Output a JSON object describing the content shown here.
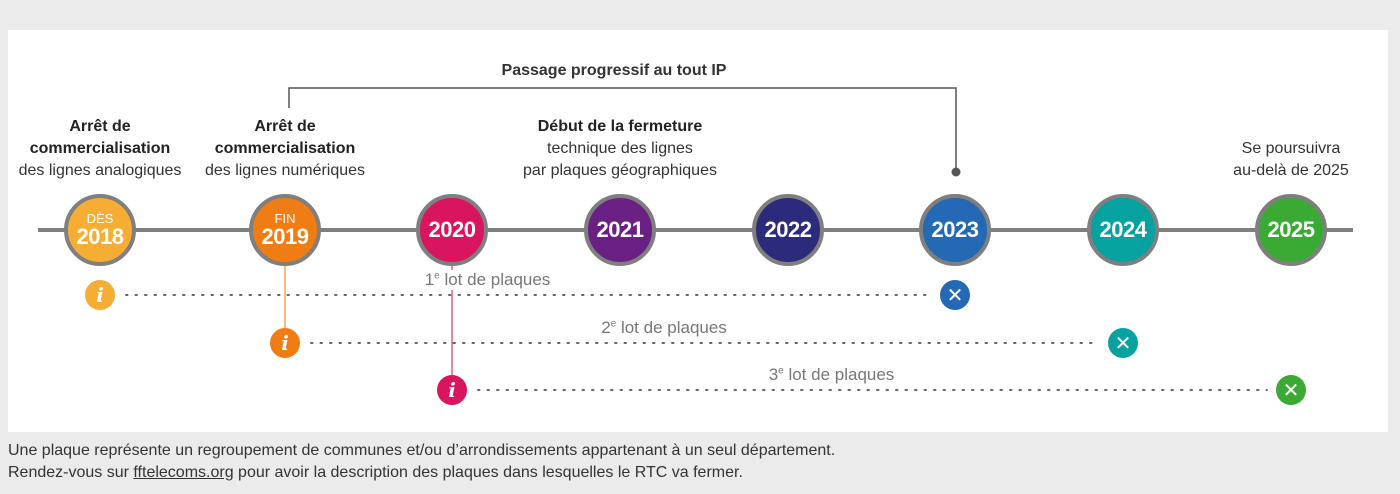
{
  "top_label": "Passage progressif au tout IP",
  "events": [
    {
      "prefix": "DÈS",
      "year": "2018",
      "color": "#f5ad34",
      "title": "Arrêt de\ncommercialisation",
      "desc": "des lignes analogiques"
    },
    {
      "prefix": "FIN",
      "year": "2019",
      "color": "#ef7d13",
      "title": "Arrêt de\ncommercialisation",
      "desc": "des lignes numériques"
    },
    {
      "prefix": "",
      "year": "2020",
      "color": "#d8155e",
      "title": "",
      "desc": ""
    },
    {
      "prefix": "",
      "year": "2021",
      "color": "#6a2083",
      "title": "Début de la fermeture",
      "desc": "technique des lignes\npar plaques géographiques"
    },
    {
      "prefix": "",
      "year": "2022",
      "color": "#2b2a7b",
      "title": "",
      "desc": ""
    },
    {
      "prefix": "",
      "year": "2023",
      "color": "#2469b3",
      "title": "",
      "desc": ""
    },
    {
      "prefix": "",
      "year": "2024",
      "color": "#06a2a0",
      "title": "",
      "desc": ""
    },
    {
      "prefix": "",
      "year": "2025",
      "color": "#3aaa35",
      "title": "",
      "desc": "Se poursuivra\nau-delà de 2025"
    }
  ],
  "lots": [
    {
      "num": "1",
      "sup": "e",
      "text": " lot de plaques",
      "start_color": "#f5ad34",
      "end_color": "#2469b3",
      "start_year": "2018",
      "end_year": "2023"
    },
    {
      "num": "2",
      "sup": "e",
      "text": " lot de plaques",
      "start_color": "#ef7d13",
      "end_color": "#06a2a0",
      "start_year": "2019",
      "end_year": "2024"
    },
    {
      "num": "3",
      "sup": "e",
      "text": " lot de plaques",
      "start_color": "#d8155e",
      "end_color": "#3aaa35",
      "start_year": "2020",
      "end_year": "2025"
    }
  ],
  "icons": {
    "info": "i",
    "close": "✕"
  },
  "footer": {
    "line1": "Une plaque représente un regroupement de communes et/ou d’arrondissements appartenant à un seul département.",
    "line2_before": "Rendez-vous sur ",
    "link": "fftelecoms.org",
    "line2_after": " pour avoir la description des plaques dans lesquelles le RTC va fermer."
  }
}
